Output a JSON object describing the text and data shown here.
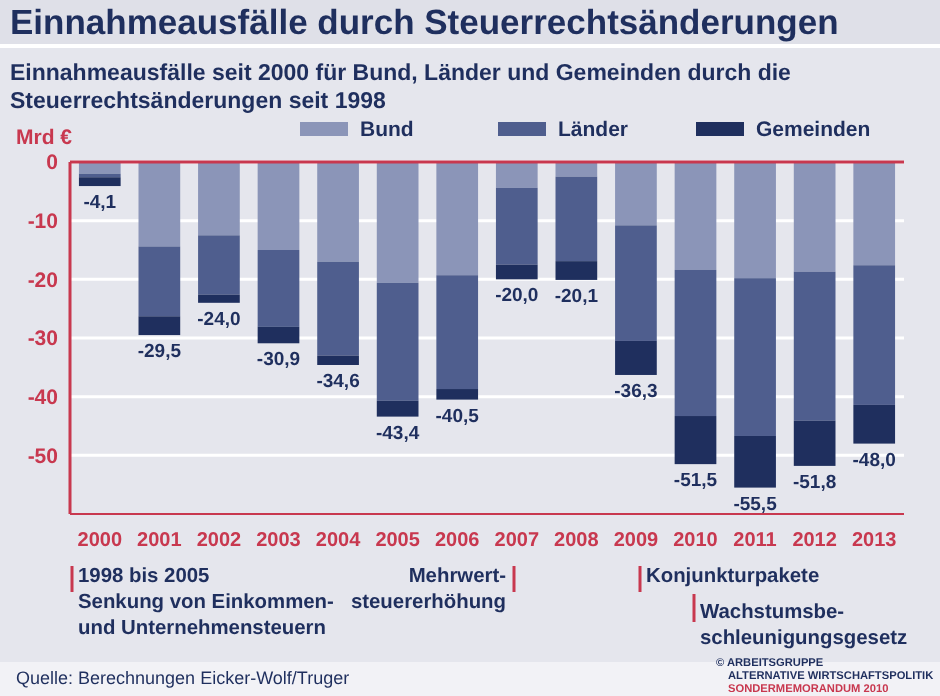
{
  "chart_data": {
    "type": "bar",
    "stacked": true,
    "title": "Einnahmeausfälle durch Steuerrechtsänderungen",
    "subtitle": "Einnahmeausfälle seit 2000 für Bund, Länder und Gemeinden durch die Steuerrechtsänderungen seit 1998",
    "ylabel": "Mrd €",
    "categories": [
      "2000",
      "2001",
      "2002",
      "2003",
      "2004",
      "2005",
      "2006",
      "2007",
      "2008",
      "2009",
      "2010",
      "2011",
      "2012",
      "2013"
    ],
    "series": [
      {
        "name": "Bund",
        "color": "#8b95b8",
        "values": [
          -2.0,
          -14.4,
          -12.5,
          -15.0,
          -17.0,
          -20.6,
          -19.3,
          -4.4,
          -2.5,
          -10.8,
          -18.4,
          -19.8,
          -18.7,
          -17.6
        ]
      },
      {
        "name": "Länder",
        "color": "#4f5e8e",
        "values": [
          -0.6,
          -11.9,
          -10.1,
          -13.1,
          -16.0,
          -20.1,
          -19.4,
          -13.1,
          -14.4,
          -19.7,
          -24.9,
          -26.9,
          -25.4,
          -23.8
        ]
      },
      {
        "name": "Gemeinden",
        "color": "#1f2f5e",
        "values": [
          -1.5,
          -3.2,
          -1.4,
          -2.8,
          -1.6,
          -2.7,
          -1.8,
          -2.5,
          -3.2,
          -5.8,
          -8.2,
          -8.8,
          -7.7,
          -6.6
        ]
      }
    ],
    "totals": [
      "-4,1",
      "-29,5",
      "-24,0",
      "-30,9",
      "-34,6",
      "-43,4",
      "-40,5",
      "-20,0",
      "-20,1",
      "-36,3",
      "-51,5",
      "-55,5",
      "-51,8",
      "-48,0"
    ],
    "ylim": [
      -60,
      0
    ],
    "yticks": [
      0,
      -10,
      -20,
      -30,
      -40,
      -50
    ],
    "grid": "y",
    "legend": "top right",
    "annotations": [
      "1998 bis 2005\nSenkung von Einkommen-\nund Unternehmensteuern",
      "Mehrwert-\nsteuererhöhung",
      "Konjunkturpakete",
      "Wachstumsbe-\nschleunigungsgesetz",
      "Quelle: Berechnungen Eicker-Wolf/Truger",
      "© ARBEITSGRUPPE\nALTERNATIVE WIRTSCHAFTSPOLITIK\nSONDERMEMORANDUM 2010"
    ]
  }
}
